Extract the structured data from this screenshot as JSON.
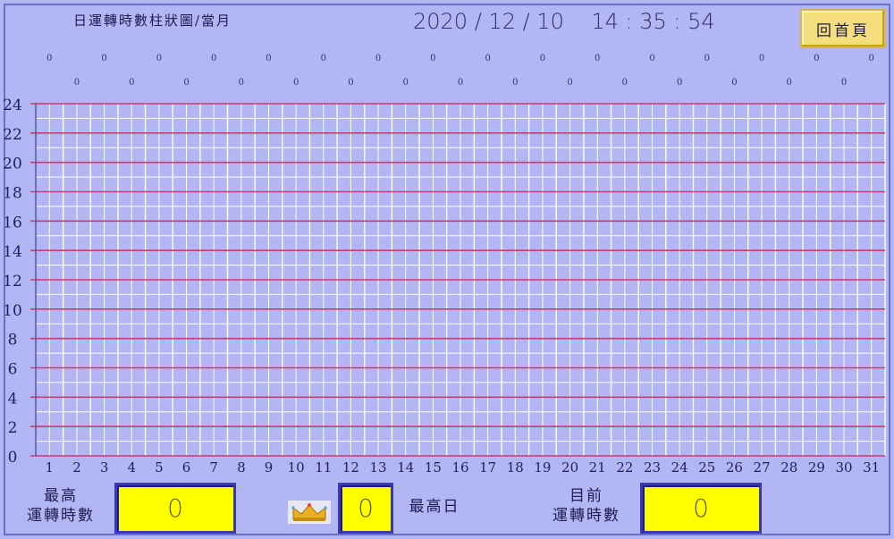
{
  "header": {
    "title": "日運轉時數柱狀圖/當月",
    "date": "2020 / 12 / 10",
    "time": "14 : 35 : 54",
    "home_label": "回首頁"
  },
  "chart_data": {
    "type": "bar",
    "categories": [
      "1",
      "2",
      "3",
      "4",
      "5",
      "6",
      "7",
      "8",
      "9",
      "10",
      "11",
      "12",
      "13",
      "14",
      "15",
      "16",
      "17",
      "18",
      "19",
      "20",
      "21",
      "22",
      "23",
      "24",
      "25",
      "26",
      "27",
      "28",
      "29",
      "30",
      "31"
    ],
    "values": [
      0,
      0,
      0,
      0,
      0,
      0,
      0,
      0,
      0,
      0,
      0,
      0,
      0,
      0,
      0,
      0,
      0,
      0,
      0,
      0,
      0,
      0,
      0,
      0,
      0,
      0,
      0,
      0,
      0,
      0,
      0
    ],
    "ylim": [
      0,
      24
    ],
    "yticks": [
      "0",
      "2",
      "4",
      "6",
      "8",
      "10",
      "12",
      "14",
      "16",
      "18",
      "20",
      "22",
      "24"
    ],
    "grid": true,
    "title": "",
    "xlabel": "",
    "ylabel": ""
  },
  "footer": {
    "max_hours_label_1": "最高",
    "max_hours_label_2": "運轉時數",
    "max_hours_value": "0",
    "max_day_value": "0",
    "max_day_label": "最高日",
    "today_label_1": "目前",
    "today_label_2": "運轉時數",
    "today_value": "0"
  },
  "colors": {
    "background": "#b3b6f5",
    "major_grid": "#c83c6e",
    "minor_grid": "#ffffff",
    "value_box": "#ffff00",
    "button": "#f6de7d"
  }
}
